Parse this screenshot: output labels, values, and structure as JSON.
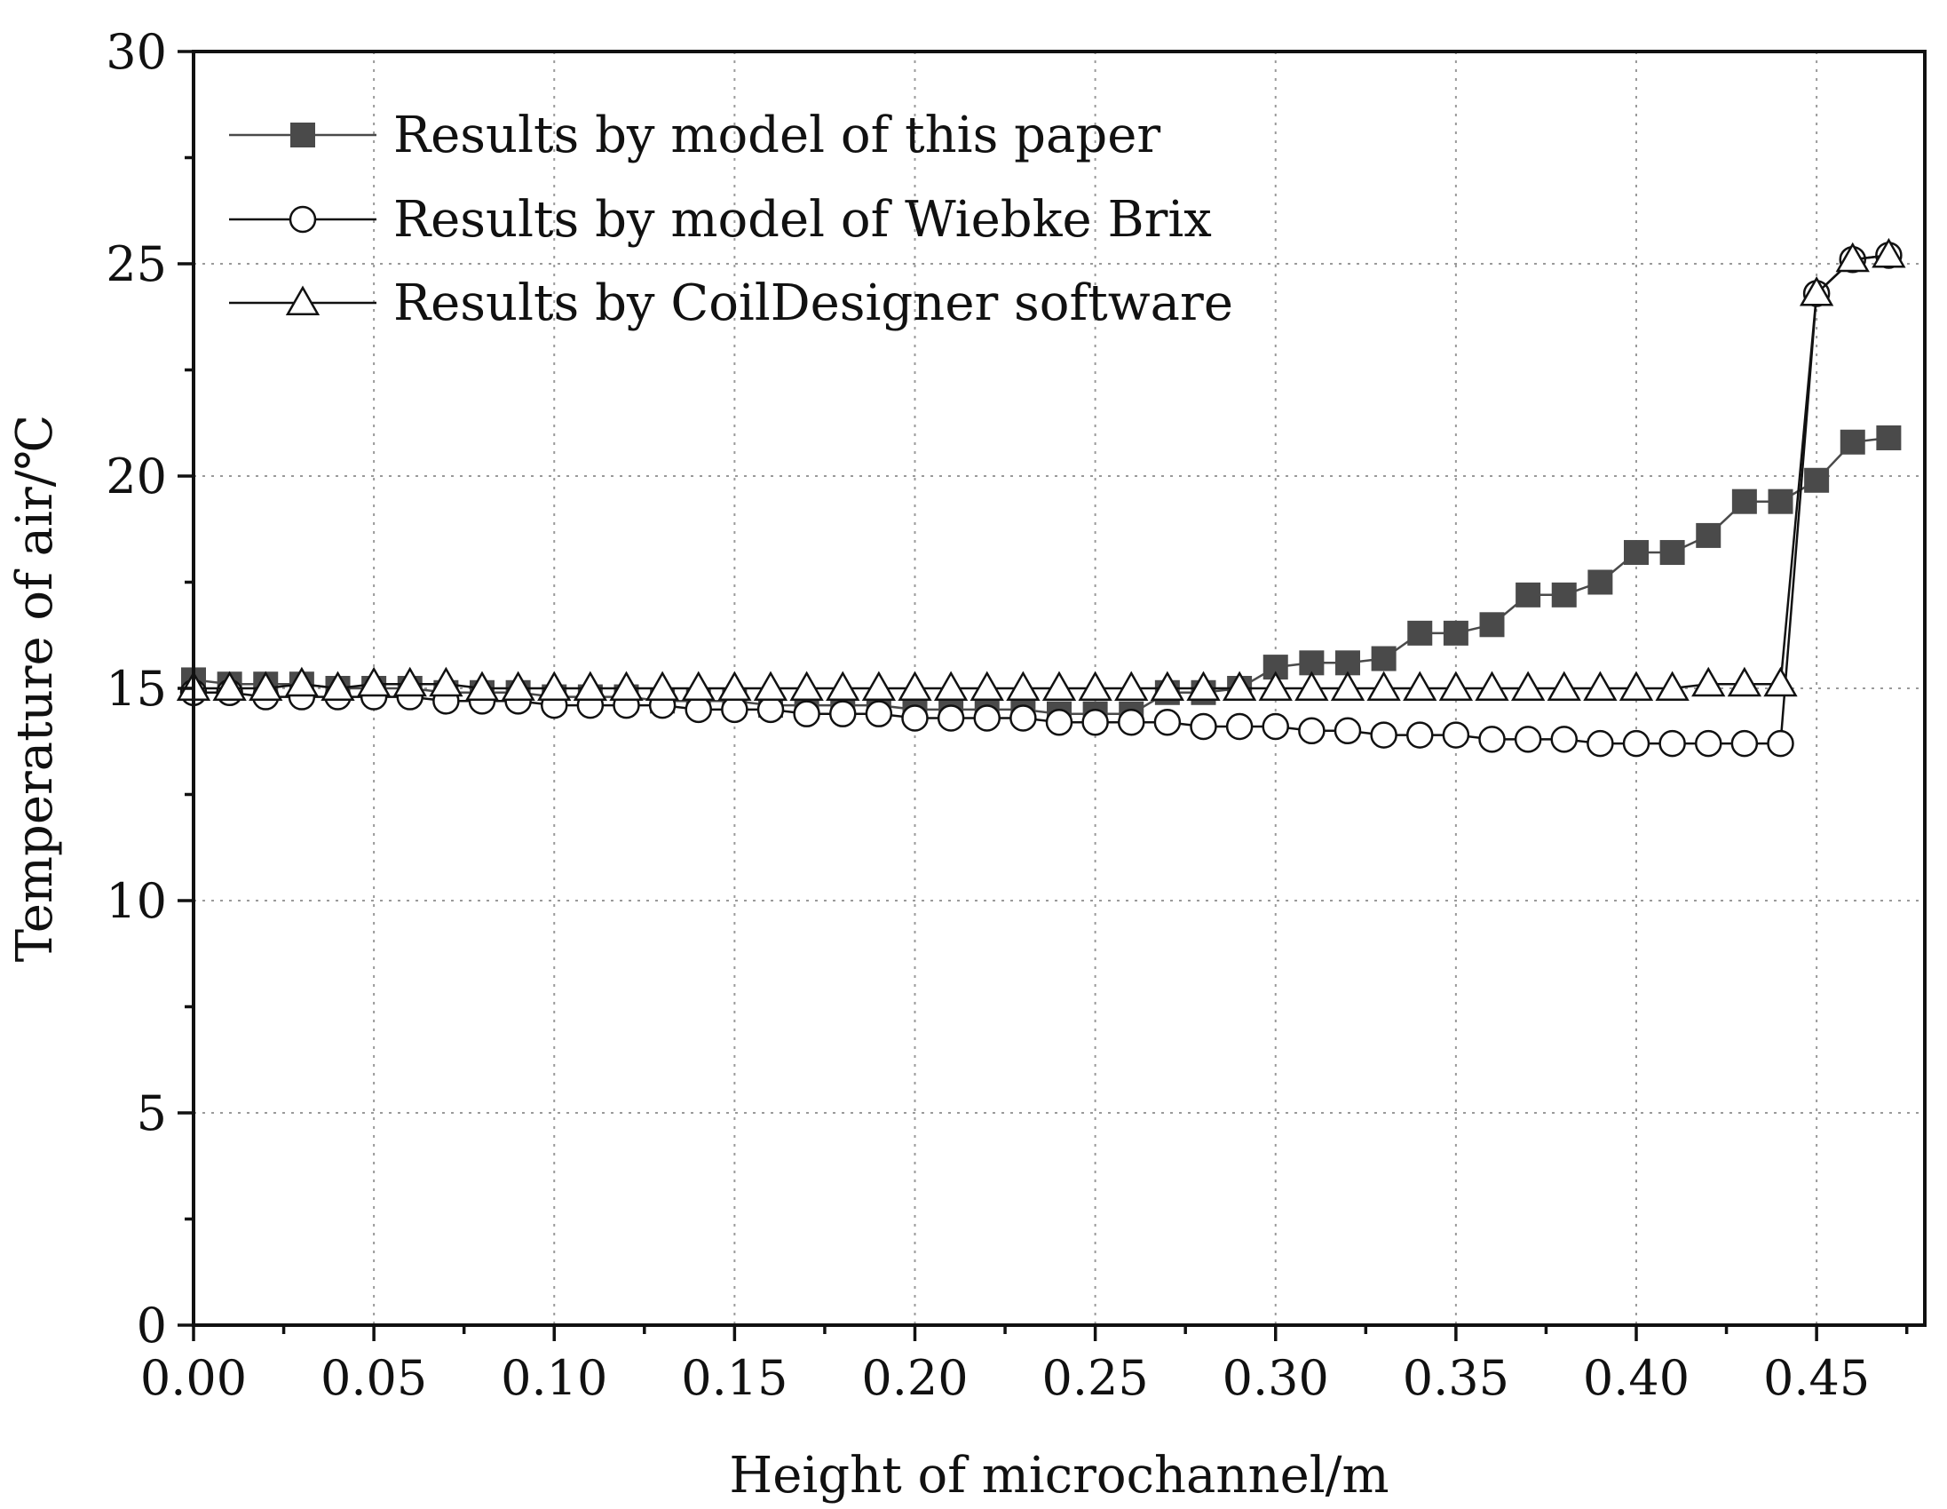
{
  "chart_data": {
    "type": "line",
    "title": "",
    "xlabel": "Height of microchannel/m",
    "ylabel": "Temperature of air/℃",
    "xlim": [
      0,
      0.48
    ],
    "ylim": [
      0,
      30
    ],
    "xticks": [
      0.0,
      0.05,
      0.1,
      0.15,
      0.2,
      0.25,
      0.3,
      0.35,
      0.4,
      0.45
    ],
    "xtick_labels": [
      "0.00",
      "0.05",
      "0.10",
      "0.15",
      "0.20",
      "0.25",
      "0.30",
      "0.35",
      "0.40",
      "0.45"
    ],
    "yticks": [
      0,
      5,
      10,
      15,
      20,
      25,
      30
    ],
    "ytick_labels": [
      "0",
      "5",
      "10",
      "15",
      "20",
      "25",
      "30"
    ],
    "grid": true,
    "legend_position": "top-left",
    "x": [
      0.0,
      0.01,
      0.02,
      0.03,
      0.04,
      0.05,
      0.06,
      0.07,
      0.08,
      0.09,
      0.1,
      0.11,
      0.12,
      0.13,
      0.14,
      0.15,
      0.16,
      0.17,
      0.18,
      0.19,
      0.2,
      0.21,
      0.22,
      0.23,
      0.24,
      0.25,
      0.26,
      0.27,
      0.28,
      0.29,
      0.3,
      0.31,
      0.32,
      0.33,
      0.34,
      0.35,
      0.36,
      0.37,
      0.38,
      0.39,
      0.4,
      0.41,
      0.42,
      0.43,
      0.44,
      0.45,
      0.46,
      0.47
    ],
    "series": [
      {
        "name": "Results by model of this paper",
        "marker": "filled-square",
        "color": "#4a4a4a",
        "values": [
          15.2,
          15.1,
          15.1,
          15.1,
          15.0,
          15.0,
          15.0,
          14.9,
          14.9,
          14.9,
          14.8,
          14.8,
          14.8,
          14.7,
          14.7,
          14.7,
          14.6,
          14.6,
          14.6,
          14.6,
          14.5,
          14.5,
          14.5,
          14.5,
          14.4,
          14.4,
          14.4,
          14.9,
          14.9,
          15.0,
          15.5,
          15.6,
          15.6,
          15.7,
          16.3,
          16.3,
          16.5,
          17.2,
          17.2,
          17.5,
          18.2,
          18.2,
          18.6,
          19.4,
          19.4,
          19.9,
          20.8,
          20.9
        ]
      },
      {
        "name": "Results by model of Wiebke Brix",
        "marker": "open-circle",
        "color": "#111111",
        "values": [
          14.9,
          14.9,
          14.8,
          14.8,
          14.8,
          14.8,
          14.8,
          14.7,
          14.7,
          14.7,
          14.6,
          14.6,
          14.6,
          14.6,
          14.5,
          14.5,
          14.5,
          14.4,
          14.4,
          14.4,
          14.3,
          14.3,
          14.3,
          14.3,
          14.2,
          14.2,
          14.2,
          14.2,
          14.1,
          14.1,
          14.1,
          14.0,
          14.0,
          13.9,
          13.9,
          13.9,
          13.8,
          13.8,
          13.8,
          13.7,
          13.7,
          13.7,
          13.7,
          13.7,
          13.7,
          24.3,
          25.1,
          25.2
        ]
      },
      {
        "name": "Results by CoilDesigner software",
        "marker": "open-triangle",
        "color": "#111111",
        "values": [
          15.0,
          15.0,
          15.0,
          15.1,
          15.0,
          15.1,
          15.1,
          15.1,
          15.0,
          15.0,
          15.0,
          15.0,
          15.0,
          15.0,
          15.0,
          15.0,
          15.0,
          15.0,
          15.0,
          15.0,
          15.0,
          15.0,
          15.0,
          15.0,
          15.0,
          15.0,
          15.0,
          15.0,
          15.0,
          15.0,
          15.0,
          15.0,
          15.0,
          15.0,
          15.0,
          15.0,
          15.0,
          15.0,
          15.0,
          15.0,
          15.0,
          15.0,
          15.1,
          15.1,
          15.1,
          24.3,
          25.1,
          25.2
        ]
      }
    ]
  }
}
